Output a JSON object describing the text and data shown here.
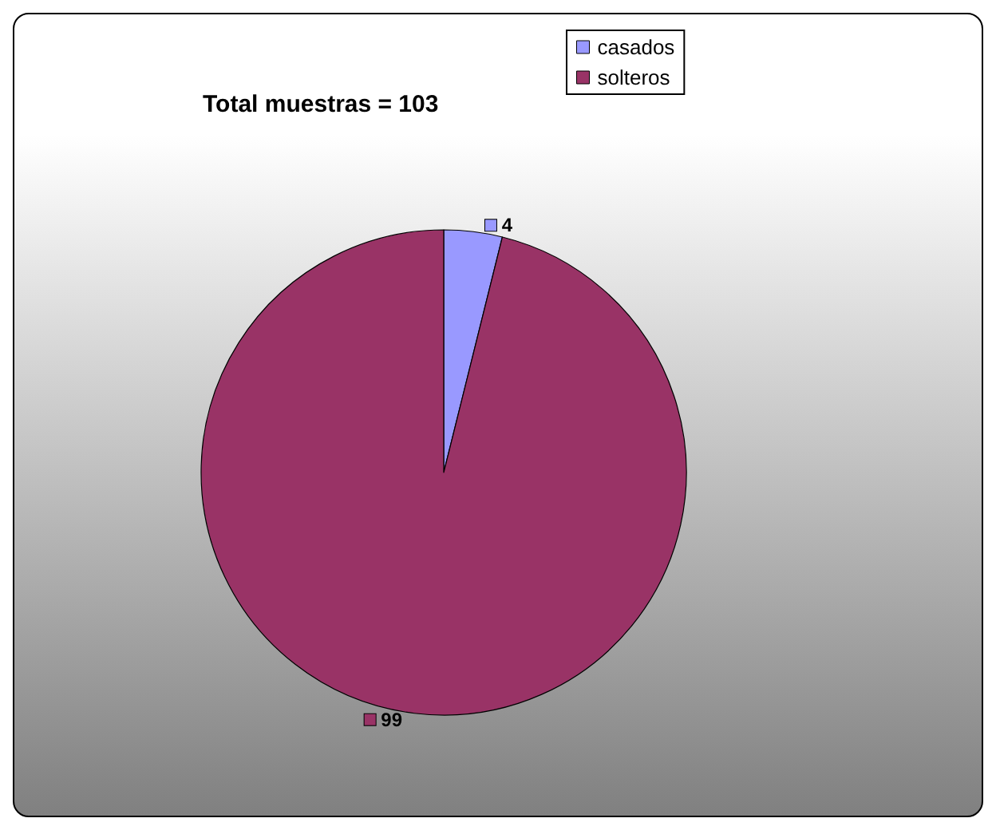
{
  "chart_data": {
    "type": "pie",
    "title": "Total muestras = 103",
    "categories": [
      "casados",
      "solteros"
    ],
    "values": [
      4,
      99
    ],
    "colors": [
      "#9999ff",
      "#993366"
    ],
    "legend": "top right",
    "data_labels": true
  }
}
